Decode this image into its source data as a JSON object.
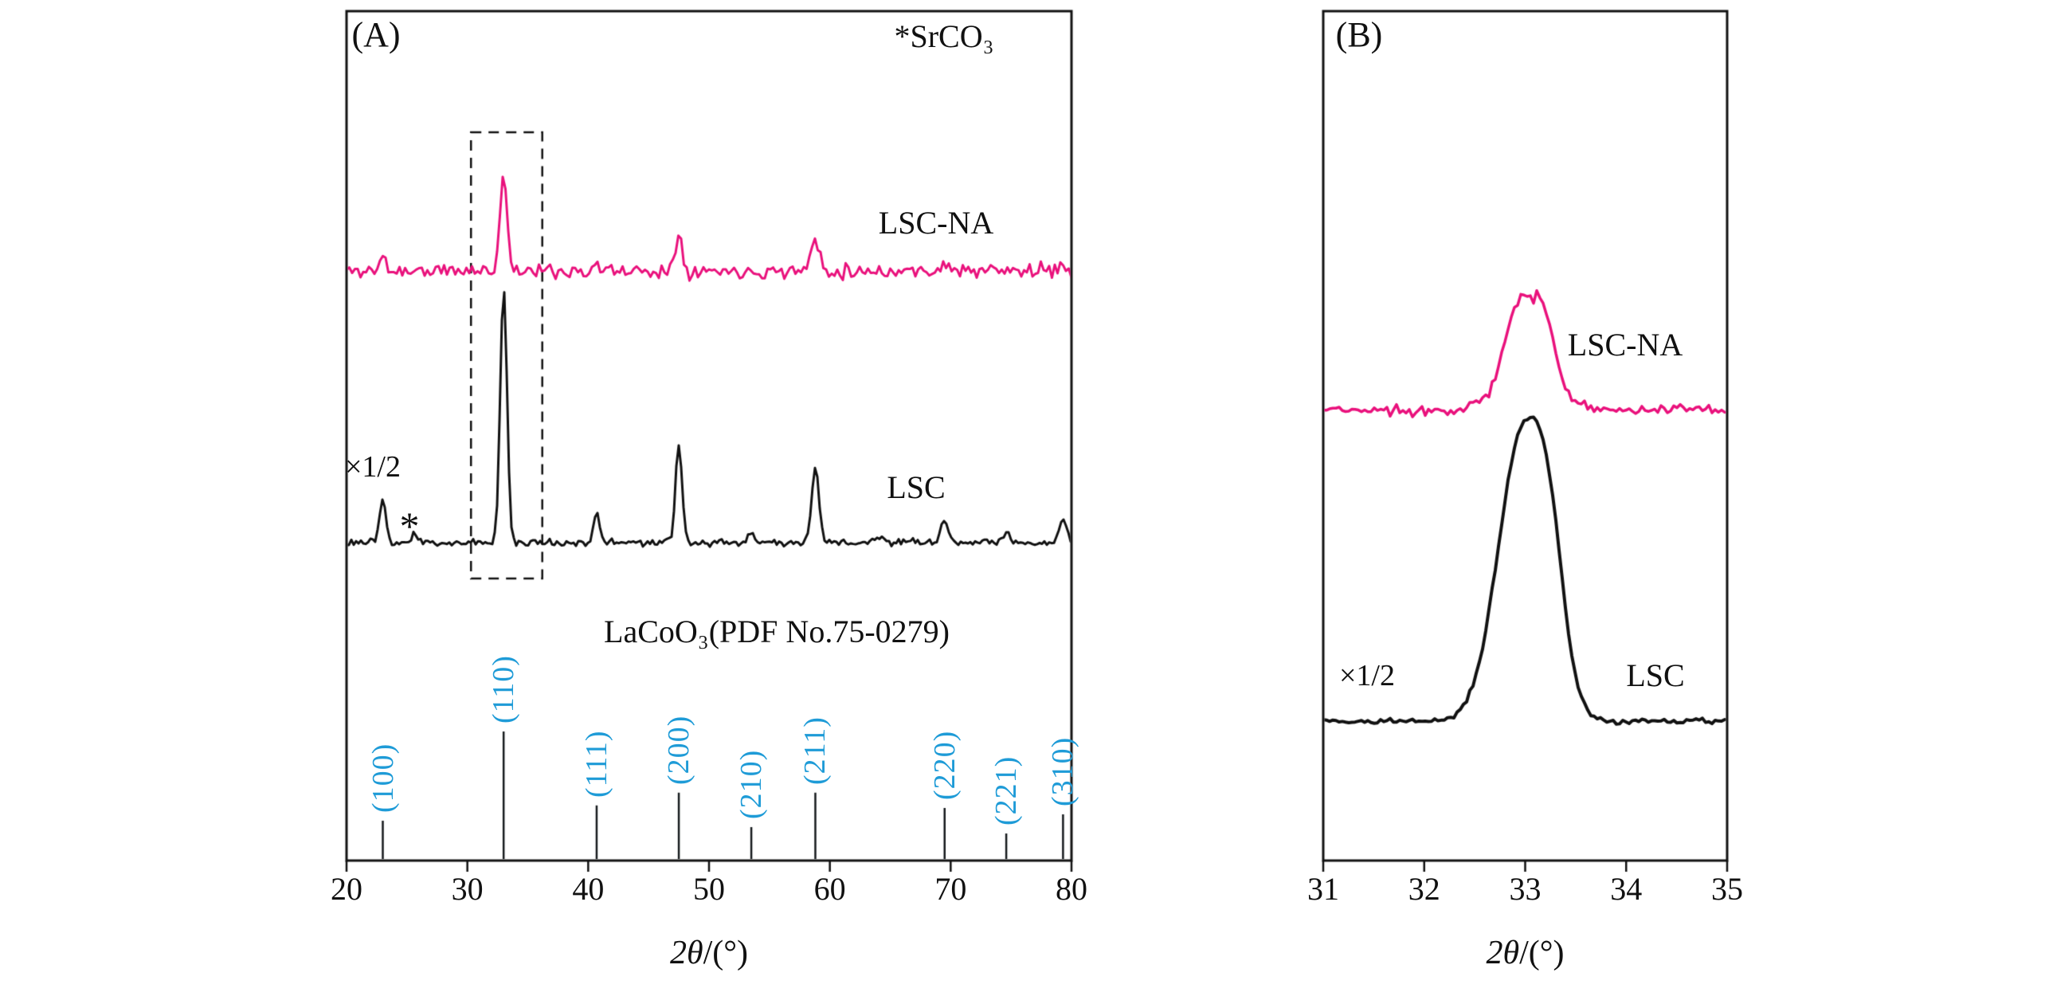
{
  "figure_labels": {
    "panelA": "(A)",
    "panelB": "(B)",
    "srco3_note": "*SrCO₃",
    "lsc_na": "LSC-NA",
    "lsc": "LSC",
    "half_scale": "×1/2",
    "star_marker": "*",
    "pdf_ref": "LaCoO₃(PDF No.75-0279)",
    "axis_title_italic": "2θ",
    "axis_title_rest": "/(°)"
  },
  "colors": {
    "lsc_na": "#E9117C",
    "lsc": "#111111",
    "hkl": "#1E9BD7",
    "sticks": "#15191c"
  },
  "chart_data": [
    {
      "type": "line",
      "panel": "A",
      "title": "",
      "xlabel": "2θ/(°)",
      "ylabel": "",
      "x_range": [
        20,
        80
      ],
      "x_ticks": [
        20,
        30,
        40,
        50,
        60,
        70,
        80
      ],
      "legend_position": "inline-right",
      "grid": false,
      "series": [
        {
          "name": "LSC-NA",
          "color_key": "lsc_na",
          "peaks": [
            {
              "two_theta": 23.0,
              "rel_intensity": 15,
              "width_deg": 0.25
            },
            {
              "two_theta": 33.0,
              "rel_intensity": 100,
              "width_deg": 0.3
            },
            {
              "two_theta": 40.7,
              "rel_intensity": 6,
              "width_deg": 0.25
            },
            {
              "two_theta": 47.5,
              "rel_intensity": 40,
              "width_deg": 0.3
            },
            {
              "two_theta": 58.8,
              "rel_intensity": 33,
              "width_deg": 0.35
            },
            {
              "two_theta": 69.5,
              "rel_intensity": 8,
              "width_deg": 0.35
            },
            {
              "two_theta": 79.3,
              "rel_intensity": 6,
              "width_deg": 0.3
            }
          ]
        },
        {
          "name": "LSC",
          "scale_note": "×1/2",
          "color_key": "lsc",
          "peaks": [
            {
              "two_theta": 23.0,
              "rel_intensity": 17,
              "width_deg": 0.25
            },
            {
              "two_theta": 25.6,
              "rel_intensity": 4,
              "width_deg": 0.2,
              "marker": "* SrCO₃"
            },
            {
              "two_theta": 33.0,
              "rel_intensity": 100,
              "width_deg": 0.28
            },
            {
              "two_theta": 40.7,
              "rel_intensity": 12,
              "width_deg": 0.25
            },
            {
              "two_theta": 47.5,
              "rel_intensity": 38,
              "width_deg": 0.27
            },
            {
              "two_theta": 53.5,
              "rel_intensity": 4,
              "width_deg": 0.3
            },
            {
              "two_theta": 58.8,
              "rel_intensity": 30,
              "width_deg": 0.3
            },
            {
              "two_theta": 64.0,
              "rel_intensity": 2,
              "width_deg": 0.3
            },
            {
              "two_theta": 69.5,
              "rel_intensity": 8,
              "width_deg": 0.35
            },
            {
              "two_theta": 74.6,
              "rel_intensity": 3,
              "width_deg": 0.3
            },
            {
              "two_theta": 79.3,
              "rel_intensity": 9,
              "width_deg": 0.3
            }
          ]
        }
      ],
      "reference_pattern": {
        "label": "LaCoO₃(PDF No.75-0279)",
        "sticks": [
          {
            "two_theta": 23.0,
            "rel_intensity": 30,
            "hkl": "(100)"
          },
          {
            "two_theta": 33.0,
            "rel_intensity": 100,
            "hkl": "(110)"
          },
          {
            "two_theta": 40.7,
            "rel_intensity": 42,
            "hkl": "(111)"
          },
          {
            "two_theta": 47.5,
            "rel_intensity": 52,
            "hkl": "(200)"
          },
          {
            "two_theta": 53.5,
            "rel_intensity": 25,
            "hkl": "(210)"
          },
          {
            "two_theta": 58.8,
            "rel_intensity": 52,
            "hkl": "(211)"
          },
          {
            "two_theta": 69.5,
            "rel_intensity": 40,
            "hkl": "(220)"
          },
          {
            "two_theta": 74.6,
            "rel_intensity": 20,
            "hkl": "(221)"
          },
          {
            "two_theta": 79.3,
            "rel_intensity": 35,
            "hkl": "(310)"
          }
        ]
      },
      "highlight_box_range": [
        30.3,
        36.2
      ],
      "annotations": [
        "*SrCO₃",
        "LSC-NA",
        "LSC",
        "×1/2",
        "*",
        "LaCoO₃(PDF No.75-0279)"
      ]
    },
    {
      "type": "line",
      "panel": "B",
      "title": "",
      "xlabel": "2θ/(°)",
      "ylabel": "",
      "x_range": [
        31,
        35
      ],
      "x_ticks": [
        31,
        32,
        33,
        34,
        35
      ],
      "legend_position": "inline-right",
      "grid": false,
      "series": [
        {
          "name": "LSC-NA",
          "color_key": "lsc_na",
          "peaks": [
            {
              "two_theta": 32.92,
              "rel_intensity": 100,
              "width_deg": 0.13
            },
            {
              "two_theta": 33.17,
              "rel_intensity": 95,
              "width_deg": 0.12
            },
            {
              "two_theta": 33.05,
              "rel_intensity": 25,
              "width_deg": 0.35
            }
          ]
        },
        {
          "name": "LSC",
          "scale_note": "×1/2",
          "color_key": "lsc",
          "peaks": [
            {
              "two_theta": 32.97,
              "rel_intensity": 100,
              "width_deg": 0.24
            },
            {
              "two_theta": 33.25,
              "rel_intensity": 35,
              "width_deg": 0.14
            }
          ]
        }
      ],
      "annotations": [
        "LSC-NA",
        "LSC",
        "×1/2"
      ]
    }
  ]
}
